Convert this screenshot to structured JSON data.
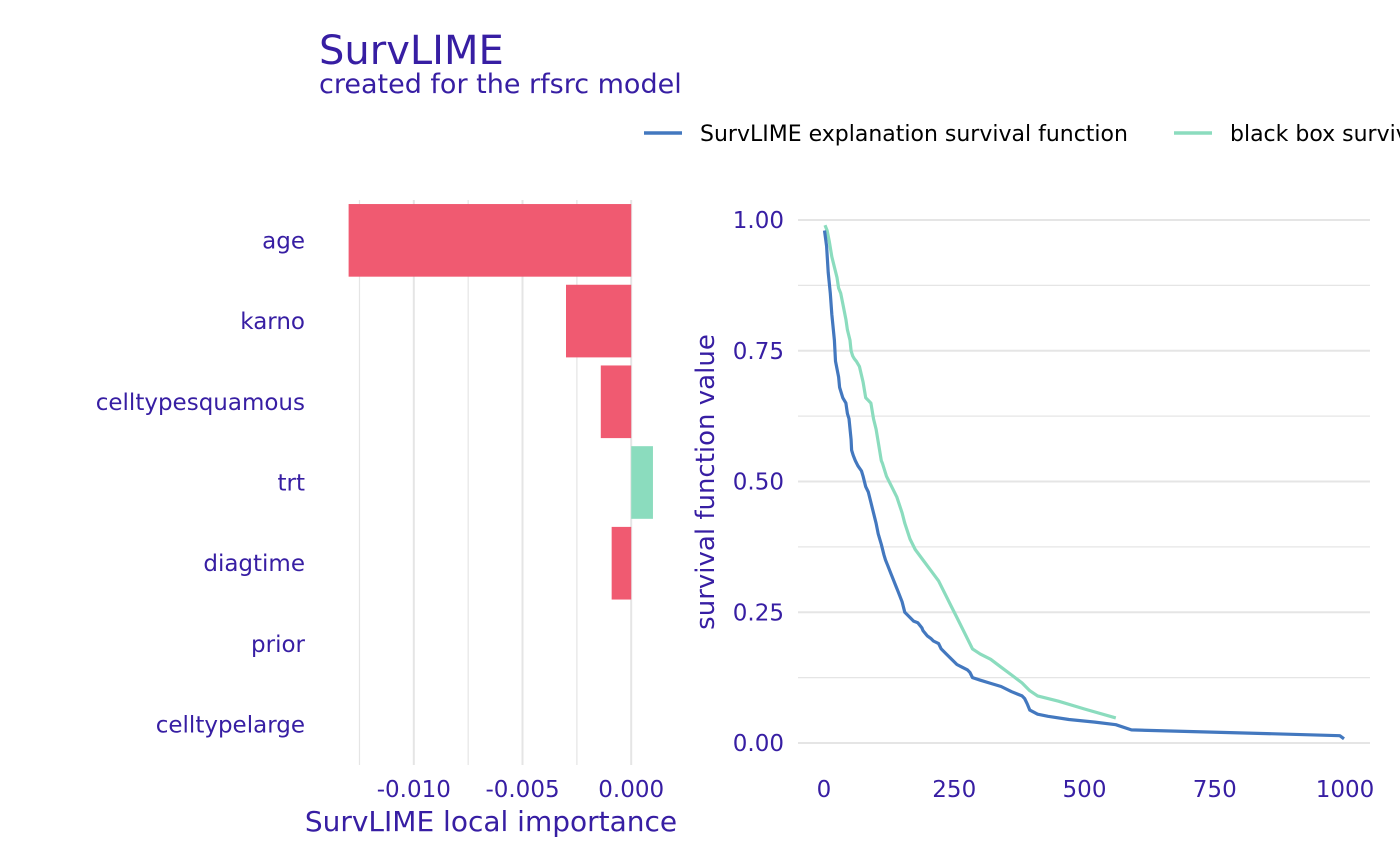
{
  "colors": {
    "text": "#371ea3",
    "negative": "#f05a71",
    "positive": "#8bdcbe",
    "explanation_line": "#4378bf",
    "blackbox_line": "#8bdcbe",
    "grid": "#e5e5e5",
    "legend_text": "#000000"
  },
  "chart_data": [
    {
      "type": "bar",
      "orientation": "horizontal",
      "title": "SurvLIME",
      "subtitle": "created for the rfsrc model",
      "xlabel": "SurvLIME local importance",
      "ylabel": "",
      "categories": [
        "age",
        "karno",
        "celltypesquamous",
        "trt",
        "diagtime",
        "prior",
        "celltypelarge"
      ],
      "values": [
        -0.013,
        -0.003,
        -0.0014,
        0.001,
        -0.0009,
        0.0,
        0.0
      ],
      "xlim": [
        -0.0145,
        0.0016
      ],
      "xticks": [
        -0.01,
        -0.005,
        0.0
      ],
      "xtick_labels": [
        "-0.010",
        "-0.005",
        "0.000"
      ],
      "grid": true
    },
    {
      "type": "line",
      "xlabel": "",
      "ylabel": "survival function value",
      "xlim": [
        0,
        1000
      ],
      "ylim": [
        0,
        1
      ],
      "xticks": [
        0,
        250,
        500,
        750,
        1000
      ],
      "xtick_labels": [
        "0",
        "250",
        "500",
        "750",
        "1000"
      ],
      "yticks": [
        0,
        0.25,
        0.5,
        0.75,
        1.0
      ],
      "ytick_labels": [
        "0.00",
        "0.25",
        "0.50",
        "0.75",
        "1.00"
      ],
      "grid": true,
      "legend_position": "top",
      "series": [
        {
          "name": "SurvLIME explanation survival function",
          "x": [
            1,
            5,
            8,
            12,
            15,
            20,
            22,
            28,
            30,
            36,
            42,
            45,
            48,
            52,
            53,
            56,
            60,
            65,
            72,
            75,
            80,
            85,
            90,
            95,
            100,
            104,
            110,
            115,
            118,
            122,
            130,
            138,
            142,
            150,
            155,
            165,
            172,
            180,
            188,
            190,
            198,
            205,
            210,
            220,
            225,
            235,
            245,
            255,
            265,
            275,
            280,
            285,
            300,
            320,
            340,
            360,
            380,
            385,
            390,
            395,
            410,
            430,
            470,
            520,
            560,
            590,
            700,
            850,
            990,
            998
          ],
          "y": [
            0.98,
            0.95,
            0.9,
            0.86,
            0.82,
            0.77,
            0.73,
            0.7,
            0.68,
            0.66,
            0.65,
            0.63,
            0.62,
            0.58,
            0.56,
            0.55,
            0.54,
            0.53,
            0.52,
            0.51,
            0.49,
            0.48,
            0.46,
            0.44,
            0.42,
            0.4,
            0.38,
            0.36,
            0.35,
            0.34,
            0.32,
            0.3,
            0.29,
            0.27,
            0.25,
            0.24,
            0.233,
            0.23,
            0.22,
            0.215,
            0.205,
            0.2,
            0.195,
            0.19,
            0.18,
            0.17,
            0.16,
            0.15,
            0.145,
            0.14,
            0.135,
            0.125,
            0.12,
            0.114,
            0.108,
            0.098,
            0.09,
            0.085,
            0.075,
            0.063,
            0.055,
            0.051,
            0.045,
            0.04,
            0.035,
            0.025,
            0.022,
            0.018,
            0.014,
            0.008
          ]
        },
        {
          "name": "black box survival function",
          "x": [
            2,
            6,
            10,
            15,
            20,
            25,
            28,
            32,
            36,
            42,
            45,
            50,
            52,
            55,
            58,
            62,
            68,
            75,
            80,
            85,
            90,
            95,
            100,
            105,
            110,
            112,
            120,
            130,
            140,
            150,
            155,
            165,
            175,
            190,
            205,
            220,
            235,
            245,
            255,
            270,
            285,
            300,
            320,
            340,
            360,
            380,
            395,
            410,
            450,
            500,
            560
          ],
          "y": [
            0.99,
            0.98,
            0.96,
            0.93,
            0.91,
            0.89,
            0.87,
            0.86,
            0.84,
            0.81,
            0.79,
            0.77,
            0.75,
            0.74,
            0.735,
            0.73,
            0.72,
            0.69,
            0.66,
            0.655,
            0.65,
            0.62,
            0.6,
            0.57,
            0.54,
            0.535,
            0.51,
            0.49,
            0.47,
            0.44,
            0.42,
            0.39,
            0.37,
            0.35,
            0.33,
            0.31,
            0.28,
            0.26,
            0.24,
            0.21,
            0.18,
            0.17,
            0.16,
            0.145,
            0.13,
            0.115,
            0.1,
            0.09,
            0.08,
            0.065,
            0.048
          ]
        }
      ]
    }
  ]
}
